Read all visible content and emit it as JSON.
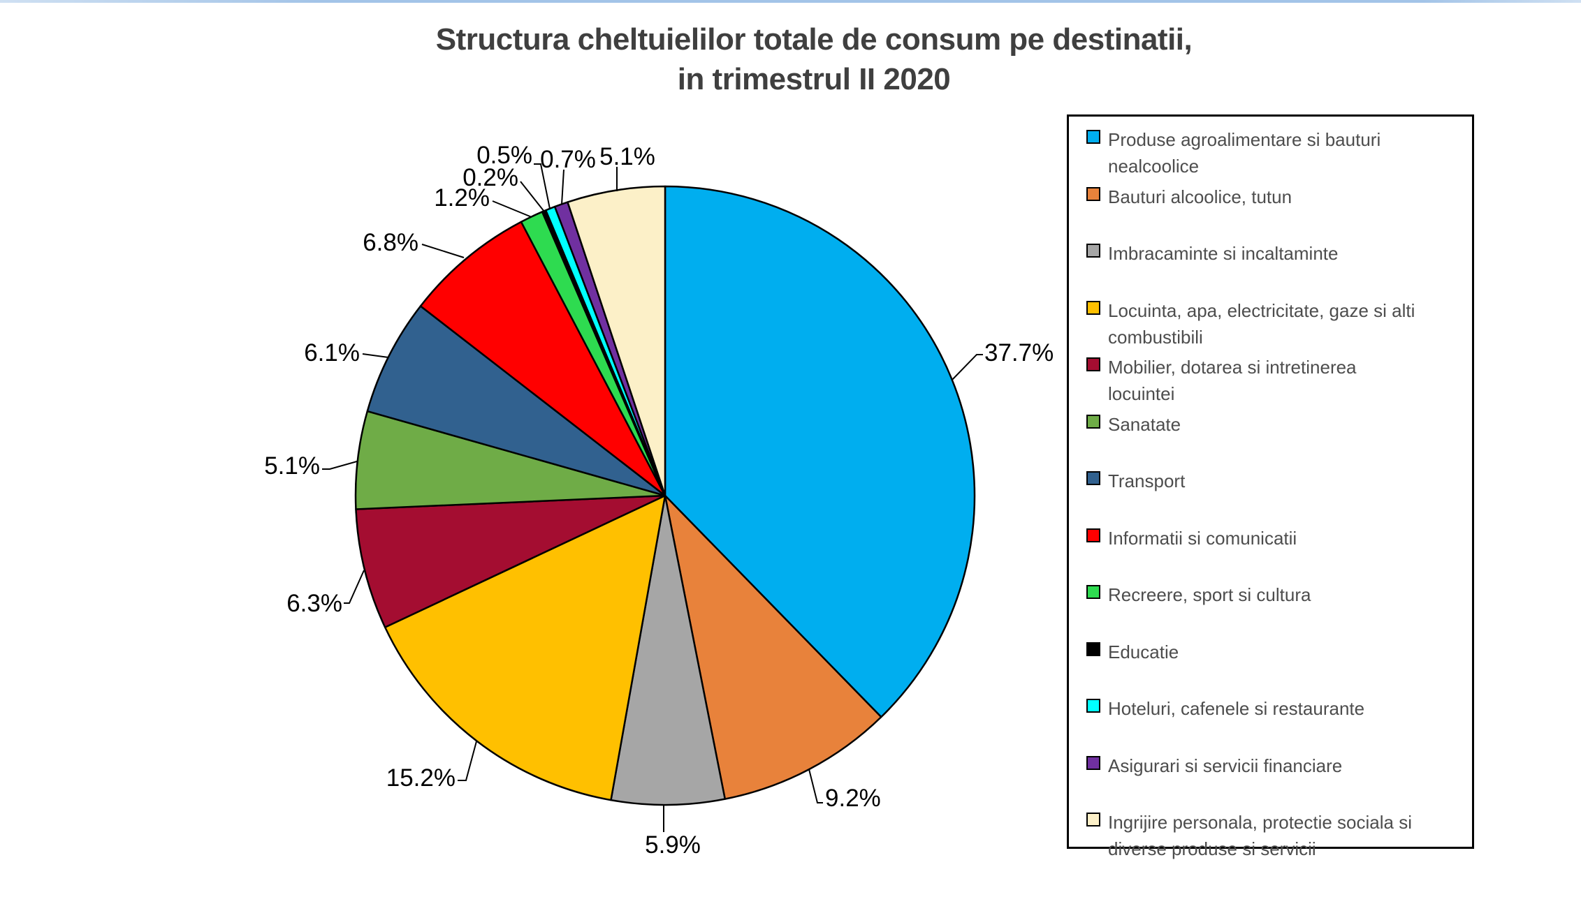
{
  "page": {
    "top_strip_color": "#a3c4e8"
  },
  "title": {
    "line1": "Structura cheltuielilor totale de consum pe destinatii,",
    "line2": "in trimestrul II 2020"
  },
  "chart_data": {
    "type": "pie",
    "title": "Structura cheltuielilor totale de consum pe destinatii, in trimestrul II 2020",
    "unit": "percent",
    "total": 100.0,
    "start_angle_deg": 0,
    "direction": "clockwise",
    "legend_position": "right",
    "slices": [
      {
        "label": "Produse agroalimentare si bauturi nealcoolice",
        "value": 37.7,
        "display": "37.7%",
        "color": "#00aeef",
        "legend_lines": "Produse agroalimentare si bauturi\nnealcoolice"
      },
      {
        "label": "Bauturi alcoolice, tutun",
        "value": 9.2,
        "display": "9.2%",
        "color": "#e8823b",
        "legend_lines": "Bauturi alcoolice, tutun"
      },
      {
        "label": "Imbracaminte si incaltaminte",
        "value": 5.9,
        "display": "5.9%",
        "color": "#a6a6a6",
        "legend_lines": "Imbracaminte si incaltaminte"
      },
      {
        "label": "Locuinta, apa, electricitate, gaze si alti combustibili",
        "value": 15.2,
        "display": "15.2%",
        "color": "#ffc000",
        "legend_lines": "Locuinta, apa, electricitate, gaze si alti\ncombustibili"
      },
      {
        "label": "Mobilier, dotarea si intretinerea locuintei",
        "value": 6.3,
        "display": "6.3%",
        "color": "#a40d31",
        "legend_lines": "Mobilier, dotarea si intretinerea\nlocuintei"
      },
      {
        "label": "Sanatate",
        "value": 5.1,
        "display": "5.1%",
        "color": "#6fac47",
        "legend_lines": "Sanatate"
      },
      {
        "label": "Transport",
        "value": 6.1,
        "display": "6.1%",
        "color": "#31618f",
        "legend_lines": "Transport"
      },
      {
        "label": "Informatii si comunicatii",
        "value": 6.8,
        "display": "6.8%",
        "color": "#ff0000",
        "legend_lines": "Informatii si comunicatii"
      },
      {
        "label": "Recreere, sport si cultura",
        "value": 1.2,
        "display": "1.2%",
        "color": "#2edb50",
        "legend_lines": "Recreere, sport si cultura"
      },
      {
        "label": "Educatie",
        "value": 0.2,
        "display": "0.2%",
        "color": "#000000",
        "legend_lines": "Educatie"
      },
      {
        "label": "Hoteluri, cafenele si restaurante",
        "value": 0.5,
        "display": "0.5%",
        "color": "#00ffff",
        "legend_lines": "Hoteluri, cafenele si restaurante"
      },
      {
        "label": "Asigurari si servicii financiare",
        "value": 0.7,
        "display": "0.7%",
        "color": "#7030a0",
        "legend_lines": "Asigurari si servicii financiare"
      },
      {
        "label": "Ingrijire personala, protectie sociala si diverse produse si servicii",
        "value": 5.1,
        "display": "5.1%",
        "color": "#fcf0c8",
        "legend_lines": "Ingrijire personala, protectie sociala si\ndiverse produse si servicii"
      }
    ]
  }
}
